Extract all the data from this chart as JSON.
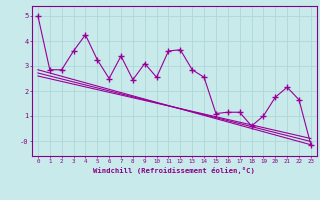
{
  "title": "",
  "xlabel": "Windchill (Refroidissement éolien,°C)",
  "x": [
    0,
    1,
    2,
    3,
    4,
    5,
    6,
    7,
    8,
    9,
    10,
    11,
    12,
    13,
    14,
    15,
    16,
    17,
    18,
    19,
    20,
    21,
    22,
    23
  ],
  "y_scatter": [
    5.0,
    2.85,
    2.85,
    3.6,
    4.25,
    3.25,
    2.5,
    3.4,
    2.45,
    3.1,
    2.55,
    3.6,
    3.65,
    2.85,
    2.55,
    1.1,
    1.15,
    1.15,
    0.6,
    1.0,
    1.75,
    2.15,
    1.65,
    -0.15
  ],
  "regression_lines": [
    {
      "x0": 0,
      "y0": 2.85,
      "x1": 23,
      "y1": -0.15
    },
    {
      "x0": 0,
      "y0": 2.72,
      "x1": 23,
      "y1": -0.02
    },
    {
      "x0": 0,
      "y0": 2.6,
      "x1": 23,
      "y1": 0.1
    }
  ],
  "line_color": "#990099",
  "bg_color": "#c8eaea",
  "grid_color": "#b0d8d8",
  "ylim": [
    -0.6,
    5.4
  ],
  "xlim": [
    -0.5,
    23.5
  ],
  "yticks": [
    0,
    1,
    2,
    3,
    4,
    5
  ],
  "ytick_labels": [
    "-0",
    "1",
    "2",
    "3",
    "4",
    "5"
  ],
  "xticks": [
    0,
    1,
    2,
    3,
    4,
    5,
    6,
    7,
    8,
    9,
    10,
    11,
    12,
    13,
    14,
    15,
    16,
    17,
    18,
    19,
    20,
    21,
    22,
    23
  ],
  "font_color": "#880088",
  "marker": "+",
  "markersize": 5,
  "markeredgewidth": 1.0,
  "linewidth": 0.8
}
